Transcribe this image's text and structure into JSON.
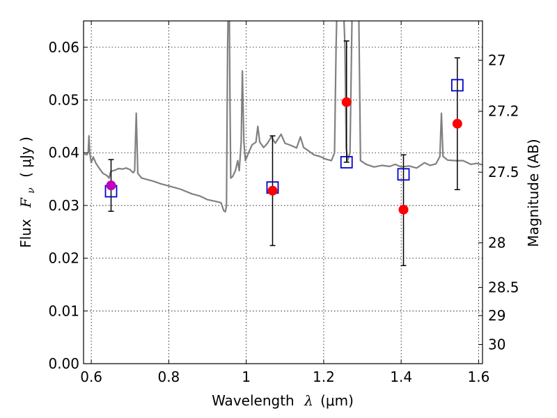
{
  "chart_data": {
    "type": "line",
    "xlabel": {
      "prefix": "Wavelength",
      "symbol": "λ",
      "unit": "(μm)"
    },
    "ylabel": {
      "prefix": "Flux",
      "symbol": "F",
      "subscript": "ν",
      "unit": "( μJy )"
    },
    "y2label": "Magnitude (AB)",
    "xlim": [
      0.58,
      1.61
    ],
    "ylim": [
      0.0,
      0.065
    ],
    "grid": true,
    "x_ticks": [
      0.6,
      0.8,
      1.0,
      1.2,
      1.4,
      1.6
    ],
    "x_tick_labels": [
      "0.6",
      "0.8",
      "1",
      "1.2",
      "1.4",
      "1.6"
    ],
    "y_ticks": [
      0.0,
      0.01,
      0.02,
      0.03,
      0.04,
      0.05,
      0.06
    ],
    "y_tick_labels": [
      "0.00",
      "0.01",
      "0.02",
      "0.03",
      "0.04",
      "0.05",
      "0.06"
    ],
    "y2_ticks": [
      {
        "mag": 27.0,
        "label": "27"
      },
      {
        "mag": 27.2,
        "label": "27.2"
      },
      {
        "mag": 27.5,
        "label": "27.5"
      },
      {
        "mag": 28.0,
        "label": "28"
      },
      {
        "mag": 28.5,
        "label": "28.5"
      },
      {
        "mag": 29.0,
        "label": "29"
      },
      {
        "mag": 30.0,
        "label": "30"
      }
    ],
    "series": [
      {
        "kind": "spectrum",
        "color": "#808080",
        "points": [
          [
            0.582,
            0.0398
          ],
          [
            0.588,
            0.0396
          ],
          [
            0.592,
            0.04
          ],
          [
            0.594,
            0.0432
          ],
          [
            0.596,
            0.04
          ],
          [
            0.6,
            0.0381
          ],
          [
            0.605,
            0.0392
          ],
          [
            0.612,
            0.038
          ],
          [
            0.62,
            0.0371
          ],
          [
            0.63,
            0.0361
          ],
          [
            0.64,
            0.0357
          ],
          [
            0.646,
            0.0352
          ],
          [
            0.65,
            0.0364
          ],
          [
            0.656,
            0.0366
          ],
          [
            0.662,
            0.0367
          ],
          [
            0.67,
            0.037
          ],
          [
            0.68,
            0.0369
          ],
          [
            0.69,
            0.0371
          ],
          [
            0.7,
            0.0368
          ],
          [
            0.708,
            0.0362
          ],
          [
            0.712,
            0.0366
          ],
          [
            0.714,
            0.042
          ],
          [
            0.716,
            0.0475
          ],
          [
            0.718,
            0.042
          ],
          [
            0.72,
            0.0361
          ],
          [
            0.73,
            0.0352
          ],
          [
            0.745,
            0.0349
          ],
          [
            0.76,
            0.0346
          ],
          [
            0.78,
            0.0341
          ],
          [
            0.8,
            0.0337
          ],
          [
            0.83,
            0.0331
          ],
          [
            0.86,
            0.0322
          ],
          [
            0.88,
            0.0318
          ],
          [
            0.9,
            0.0311
          ],
          [
            0.92,
            0.0308
          ],
          [
            0.935,
            0.0305
          ],
          [
            0.942,
            0.029
          ],
          [
            0.946,
            0.0288
          ],
          [
            0.949,
            0.0299
          ],
          [
            0.95,
            0.04
          ],
          [
            0.952,
            0.06
          ],
          [
            0.954,
            0.07
          ],
          [
            0.956,
            0.07
          ],
          [
            0.958,
            0.05
          ],
          [
            0.96,
            0.0352
          ],
          [
            0.965,
            0.0355
          ],
          [
            0.972,
            0.0366
          ],
          [
            0.978,
            0.0385
          ],
          [
            0.982,
            0.0366
          ],
          [
            0.987,
            0.042
          ],
          [
            0.99,
            0.0555
          ],
          [
            0.994,
            0.042
          ],
          [
            0.998,
            0.0385
          ],
          [
            1.005,
            0.0398
          ],
          [
            1.015,
            0.0415
          ],
          [
            1.025,
            0.042
          ],
          [
            1.03,
            0.045
          ],
          [
            1.035,
            0.042
          ],
          [
            1.045,
            0.041
          ],
          [
            1.055,
            0.0418
          ],
          [
            1.065,
            0.043
          ],
          [
            1.075,
            0.0418
          ],
          [
            1.09,
            0.0435
          ],
          [
            1.1,
            0.0418
          ],
          [
            1.115,
            0.0414
          ],
          [
            1.13,
            0.0409
          ],
          [
            1.14,
            0.043
          ],
          [
            1.148,
            0.041
          ],
          [
            1.16,
            0.0404
          ],
          [
            1.175,
            0.0396
          ],
          [
            1.19,
            0.0393
          ],
          [
            1.205,
            0.0388
          ],
          [
            1.22,
            0.0385
          ],
          [
            1.228,
            0.04
          ],
          [
            1.232,
            0.06
          ],
          [
            1.235,
            0.07
          ],
          [
            1.25,
            0.07
          ],
          [
            1.255,
            0.06
          ],
          [
            1.258,
            0.041
          ],
          [
            1.262,
            0.0385
          ],
          [
            1.268,
            0.04
          ],
          [
            1.274,
            0.07
          ],
          [
            1.29,
            0.07
          ],
          [
            1.295,
            0.0385
          ],
          [
            1.31,
            0.0378
          ],
          [
            1.33,
            0.0373
          ],
          [
            1.35,
            0.0376
          ],
          [
            1.37,
            0.0374
          ],
          [
            1.385,
            0.0378
          ],
          [
            1.4,
            0.0373
          ],
          [
            1.42,
            0.0375
          ],
          [
            1.44,
            0.0371
          ],
          [
            1.46,
            0.0381
          ],
          [
            1.475,
            0.0376
          ],
          [
            1.49,
            0.0379
          ],
          [
            1.5,
            0.0393
          ],
          [
            1.504,
            0.0475
          ],
          [
            1.508,
            0.0393
          ],
          [
            1.52,
            0.0386
          ],
          [
            1.54,
            0.0385
          ],
          [
            1.56,
            0.0385
          ],
          [
            1.58,
            0.0378
          ],
          [
            1.595,
            0.038
          ],
          [
            1.61,
            0.0377
          ]
        ]
      },
      {
        "kind": "model_squares",
        "color": "#0000cc",
        "points": [
          [
            0.651,
            0.0327
          ],
          [
            1.068,
            0.0334
          ],
          [
            1.259,
            0.0382
          ],
          [
            1.406,
            0.0359
          ],
          [
            1.545,
            0.0528
          ]
        ]
      },
      {
        "kind": "observed_points",
        "color": "#ff0000",
        "points": [
          {
            "x": 0.651,
            "y": 0.0338,
            "ylow": 0.0289,
            "yhigh": 0.0387,
            "color": "#bf00bf"
          },
          {
            "x": 1.068,
            "y": 0.0328,
            "ylow": 0.0224,
            "yhigh": 0.0432
          },
          {
            "x": 1.259,
            "y": 0.0496,
            "ylow": 0.0382,
            "yhigh": 0.0612
          },
          {
            "x": 1.406,
            "y": 0.0292,
            "ylow": 0.0186,
            "yhigh": 0.0396
          },
          {
            "x": 1.545,
            "y": 0.0455,
            "ylow": 0.033,
            "yhigh": 0.058
          }
        ]
      }
    ]
  }
}
